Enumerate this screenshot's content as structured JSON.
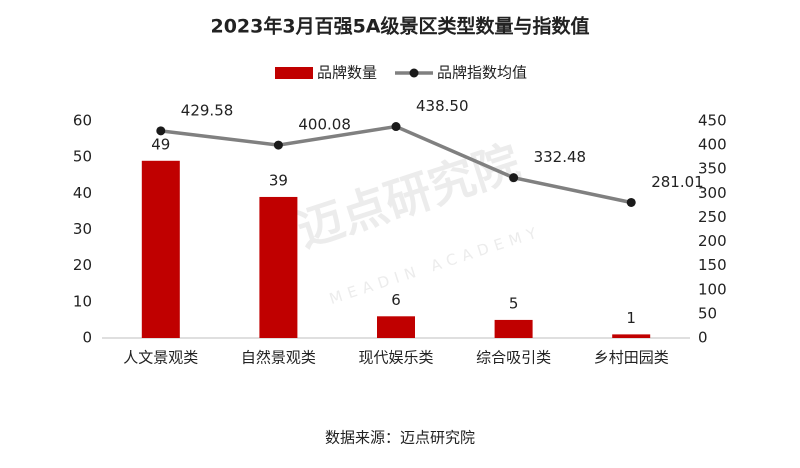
{
  "chart_data": {
    "type": "bar",
    "title": "2023年3月百强5A级景区类型数量与指数值",
    "categories": [
      "人文景观类",
      "自然景观类",
      "现代娱乐类",
      "综合吸引类",
      "乡村田园类"
    ],
    "series": [
      {
        "name": "品牌数量",
        "type": "bar",
        "color": "#c00000",
        "values": [
          49,
          39,
          6,
          5,
          1
        ]
      },
      {
        "name": "品牌指数均值",
        "type": "line",
        "axis": "y2",
        "color": "#808080",
        "marker_color": "#1a1a1a",
        "values": [
          429.58,
          400.08,
          438.5,
          332.48,
          281.01
        ],
        "value_labels": [
          "429.58",
          "400.08",
          "438.50",
          "332.48",
          "281.01"
        ]
      }
    ],
    "ylim": [
      0,
      60
    ],
    "yticks": [
      0,
      10,
      20,
      30,
      40,
      50,
      60
    ],
    "y2lim": [
      0,
      450
    ],
    "y2ticks": [
      0,
      50,
      100,
      150,
      200,
      250,
      300,
      350,
      400,
      450
    ],
    "grid": false,
    "legend": "top",
    "source": "数据来源：迈点研究院",
    "watermark": {
      "name": "迈点研究院",
      "sub": "MEADIN ACADEMY"
    }
  }
}
